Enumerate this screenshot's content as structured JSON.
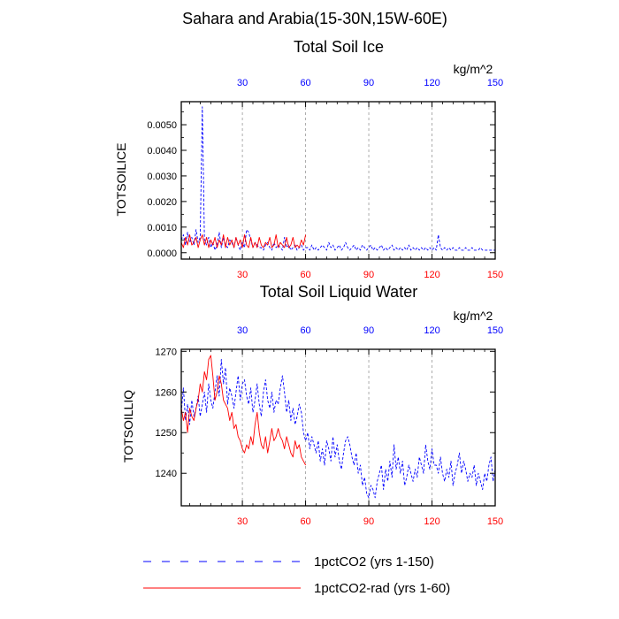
{
  "figure": {
    "title": "Sahara and Arabia(15-30N,15W-60E)"
  },
  "colors": {
    "series_blue": "#0000ff",
    "series_red": "#ff0000",
    "grid": "#999999",
    "axis": "#000000"
  },
  "legend": {
    "items": [
      {
        "label": "1pctCO2 (yrs 1-150)",
        "color": "#0000ff",
        "dash": "dashed"
      },
      {
        "label": "1pctCO2-rad (yrs 1-60)",
        "color": "#ff0000",
        "dash": "solid"
      }
    ]
  },
  "chart_data": [
    {
      "type": "line",
      "title": "Total Soil Ice",
      "ylabel": "TOTSOILICE",
      "units": "kg/m^2",
      "xlim": [
        1,
        150
      ],
      "ylim": [
        -0.00025,
        0.0059
      ],
      "xticks": [
        30,
        60,
        90,
        120,
        150
      ],
      "xtick_labels": [
        "30",
        "60",
        "90",
        "120",
        "150"
      ],
      "yticks": [
        0.0,
        0.001,
        0.002,
        0.003,
        0.004,
        0.005
      ],
      "ytick_labels": [
        "0.0000",
        "0.0010",
        "0.0020",
        "0.0030",
        "0.0040",
        "0.0050"
      ],
      "grid": "vertical dashed at x ticks",
      "series": [
        {
          "name": "1pctCO2 (yrs 1-150)",
          "color": "#0000ff",
          "style": "dashed",
          "x_start": 1,
          "values": [
            0.0005,
            0.0007,
            0.0003,
            0.0008,
            0.0004,
            0.0006,
            0.0003,
            0.0009,
            0.0004,
            0.0006,
            0.0057,
            0.0005,
            0.0003,
            0.0006,
            0.0002,
            0.0004,
            0.0001,
            0.0003,
            0.0008,
            0.0002,
            0.0006,
            0.0003,
            0.0002,
            0.0005,
            0.0004,
            0.0002,
            0.0006,
            0.0003,
            0.0001,
            0.0004,
            0.0002,
            0.0009,
            0.0008,
            0.0005,
            0.0002,
            0.0004,
            0.0003,
            0.0002,
            0.0002,
            0.0001,
            0.0003,
            0.0004,
            0.0002,
            0.0001,
            0.0004,
            0.0002,
            0.0003,
            0.0002,
            0.0001,
            0.0006,
            0.0002,
            0.0003,
            0.0001,
            0.0002,
            0.0003,
            0.0001,
            0.0002,
            0.0003,
            0.0001,
            0.0002,
            0.0002,
            0.0001,
            0.0003,
            0.0001,
            0.0002,
            0.0001,
            0.0002,
            0.0003,
            0.0002,
            0.0001,
            0.0004,
            0.0002,
            0.0003,
            0.0001,
            0.0002,
            0.0003,
            0.0001,
            0.0002,
            0.0004,
            0.0002,
            0.0001,
            0.0002,
            0.0003,
            0.0001,
            0.0002,
            0.0001,
            0.0003,
            0.0002,
            0.0001,
            0.0002,
            0.0003,
            0.0001,
            0.0002,
            0.0001,
            0.0002,
            0.0003,
            0.0001,
            0.0002,
            0.0001,
            0.0002,
            0.0003,
            0.0001,
            0.0002,
            0.0001,
            0.0002,
            0.0001,
            0.0002,
            0.0001,
            0.0003,
            0.0001,
            0.0002,
            0.0001,
            0.0002,
            0.0001,
            0.0002,
            0.0001,
            0.0002,
            0.0001,
            0.0002,
            0.0001,
            0.0002,
            0.0001,
            0.0007,
            0.0002,
            0.0001,
            0.0002,
            0.0001,
            0.0002,
            0.0001,
            0.0002,
            0.0001,
            0.0001,
            0.0002,
            0.0001,
            0.0001,
            0.0002,
            0.0001,
            0.0001,
            0.0002,
            0.0001,
            0.0001,
            0.0001,
            0.0002,
            0.0001,
            0.0001,
            0.0001,
            0.0001,
            0.0001,
            0.0001,
            0.0001
          ]
        },
        {
          "name": "1pctCO2-rad (yrs 1-60)",
          "color": "#ff0000",
          "style": "solid",
          "x_start": 1,
          "values": [
            0.0004,
            0.0002,
            0.0006,
            0.0003,
            0.0007,
            0.0003,
            0.0004,
            0.0006,
            0.0002,
            0.0005,
            0.0007,
            0.0003,
            0.0006,
            0.0002,
            0.0005,
            0.0003,
            0.0006,
            0.0002,
            0.0005,
            0.0003,
            0.0007,
            0.0002,
            0.0006,
            0.0003,
            0.0005,
            0.0002,
            0.0006,
            0.0003,
            0.0005,
            0.0002,
            0.0007,
            0.0003,
            0.0002,
            0.0006,
            0.0002,
            0.0004,
            0.0002,
            0.0006,
            0.0003,
            0.0002,
            0.0004,
            0.0003,
            0.0006,
            0.0002,
            0.0003,
            0.0007,
            0.0002,
            0.0004,
            0.0003,
            0.0002,
            0.0006,
            0.0002,
            0.0003,
            0.0006,
            0.0002,
            0.0003,
            0.0002,
            0.0005,
            0.0003,
            0.0007
          ]
        }
      ]
    },
    {
      "type": "line",
      "title": "Total Soil Liquid Water",
      "ylabel": "TOTSOILLIQ",
      "units": "kg/m^2",
      "xlim": [
        1,
        150
      ],
      "ylim": [
        1232,
        1270.5
      ],
      "xticks": [
        30,
        60,
        90,
        120,
        150
      ],
      "xtick_labels": [
        "30",
        "60",
        "90",
        "120",
        "150"
      ],
      "yticks": [
        1240,
        1250,
        1260,
        1270
      ],
      "ytick_labels": [
        "1240",
        "1250",
        "1260",
        "1270"
      ],
      "grid": "vertical dashed at x ticks",
      "series": [
        {
          "name": "1pctCO2 (yrs 1-150)",
          "color": "#0000ff",
          "style": "dashed",
          "x_start": 1,
          "values": [
            1255,
            1261,
            1253,
            1257,
            1252,
            1258,
            1254,
            1256,
            1259,
            1254,
            1257,
            1260,
            1255,
            1262,
            1258,
            1256,
            1260,
            1264,
            1259,
            1268,
            1262,
            1266,
            1257,
            1261,
            1259,
            1256,
            1260,
            1264,
            1258,
            1262,
            1263,
            1259,
            1257,
            1261,
            1255,
            1258,
            1262,
            1257,
            1254,
            1260,
            1263,
            1258,
            1256,
            1260,
            1255,
            1258,
            1257,
            1261,
            1264,
            1260,
            1255,
            1258,
            1253,
            1256,
            1252,
            1254,
            1257,
            1255,
            1250,
            1248,
            1250,
            1246,
            1249,
            1247,
            1245,
            1248,
            1243,
            1246,
            1242,
            1248,
            1246,
            1243,
            1249,
            1244,
            1247,
            1243,
            1241,
            1245,
            1248,
            1249,
            1247,
            1244,
            1242,
            1245,
            1240,
            1242,
            1237,
            1239,
            1235,
            1234,
            1237,
            1236,
            1234,
            1238,
            1240,
            1242,
            1236,
            1241,
            1238,
            1243,
            1239,
            1247,
            1241,
            1244,
            1240,
            1243,
            1237,
            1239,
            1242,
            1240,
            1238,
            1241,
            1239,
            1244,
            1242,
            1240,
            1247,
            1243,
            1241,
            1246,
            1242,
            1242,
            1240,
            1244,
            1240,
            1238,
            1241,
            1239,
            1243,
            1237,
            1240,
            1242,
            1245,
            1240,
            1243,
            1241,
            1238,
            1240,
            1239,
            1242,
            1237,
            1240,
            1238,
            1236,
            1240,
            1238,
            1242,
            1244,
            1238,
            1241
          ]
        },
        {
          "name": "1pctCO2-rad (yrs 1-60)",
          "color": "#ff0000",
          "style": "solid",
          "x_start": 1,
          "values": [
            1256,
            1253,
            1255,
            1250,
            1256,
            1254,
            1253,
            1256,
            1258,
            1262,
            1260,
            1265,
            1263,
            1268,
            1269,
            1264,
            1258,
            1260,
            1264,
            1262,
            1258,
            1257,
            1256,
            1253,
            1255,
            1251,
            1252,
            1249,
            1248,
            1246,
            1245,
            1247,
            1246,
            1249,
            1247,
            1252,
            1255,
            1250,
            1247,
            1246,
            1249,
            1245,
            1248,
            1251,
            1248,
            1249,
            1251,
            1249,
            1248,
            1246,
            1249,
            1247,
            1245,
            1244,
            1248,
            1246,
            1247,
            1244,
            1243,
            1242
          ]
        }
      ]
    }
  ]
}
